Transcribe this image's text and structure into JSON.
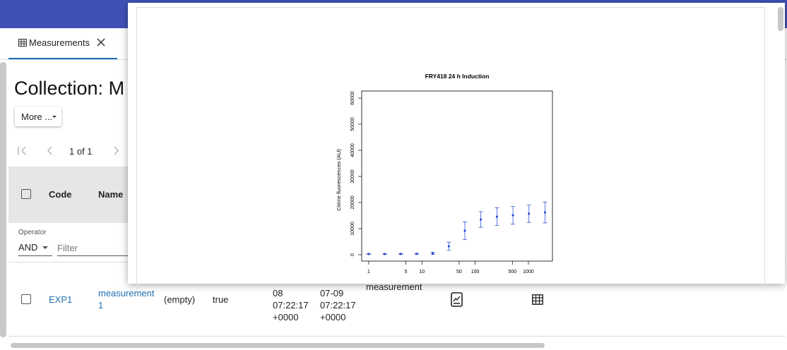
{
  "tab": {
    "label": "Measurements"
  },
  "collection": {
    "title": "Collection: M",
    "more_button": "More ..."
  },
  "pagination": {
    "label": "1 of 1"
  },
  "table": {
    "columns": [
      "Code",
      "Name"
    ],
    "filter": {
      "operator_label": "Operator",
      "operator": "AND",
      "placeholder": "Filter"
    },
    "rows": [
      [
        "EXP1",
        "measurement 1",
        "(empty)",
        "true",
        [
          "08",
          "07:22:17",
          "+0000"
        ],
        [
          "07-09",
          "07:22:17",
          "+0000"
        ],
        "measurement"
      ]
    ]
  },
  "chart_data": {
    "type": "scatter",
    "title": "FRY418 24 h Induction",
    "y_label": "Citrine fluorescences (AU)",
    "x_log": true,
    "xlim": [
      0.74,
      2830
    ],
    "xticks": [
      1,
      5,
      10,
      50,
      100,
      500,
      1000
    ],
    "ylim": [
      -2430,
      62700
    ],
    "yticks": [
      0,
      10000,
      20000,
      30000,
      40000,
      50000,
      60000
    ],
    "series": [
      {
        "color": "#1a3fd0",
        "x": [
          1,
          2,
          4,
          8,
          16,
          32,
          64,
          128,
          256,
          512,
          1024,
          2048
        ],
        "values": [
          270,
          280,
          300,
          350,
          540,
          3240,
          9200,
          13500,
          14600,
          15100,
          15700,
          16200
        ],
        "errors": [
          150,
          150,
          150,
          200,
          400,
          1600,
          3400,
          3000,
          3400,
          3400,
          3300,
          4000
        ]
      }
    ]
  }
}
